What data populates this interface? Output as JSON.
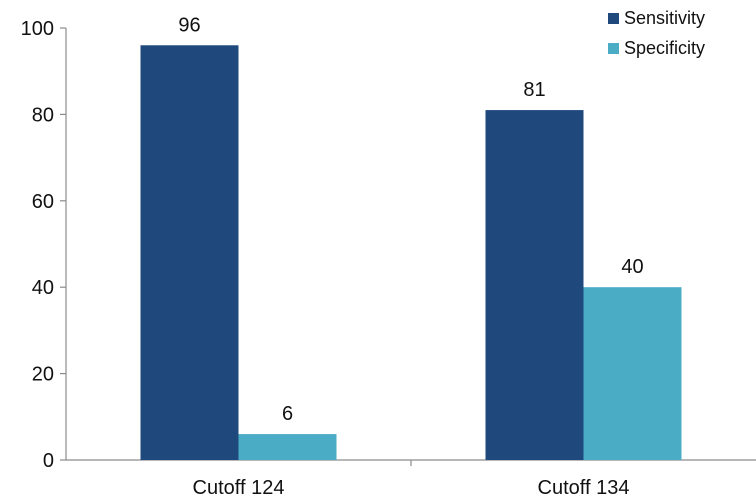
{
  "chart_data": {
    "type": "bar",
    "title": "",
    "xlabel": "",
    "ylabel": "",
    "categories": [
      "Cutoff 124",
      "Cutoff 134"
    ],
    "series": [
      {
        "name": "Sensitivity",
        "color": "#1f497d",
        "values": [
          96,
          81
        ]
      },
      {
        "name": "Specificity",
        "color": "#4bacc6",
        "values": [
          6,
          40
        ]
      }
    ],
    "ylim": [
      0,
      100
    ],
    "yticks": [
      "0",
      "20",
      "40",
      "60",
      "80",
      "100"
    ],
    "data_labels": [
      "96",
      "81",
      "6",
      "40"
    ],
    "grid": false,
    "legend_position": "top-right"
  }
}
